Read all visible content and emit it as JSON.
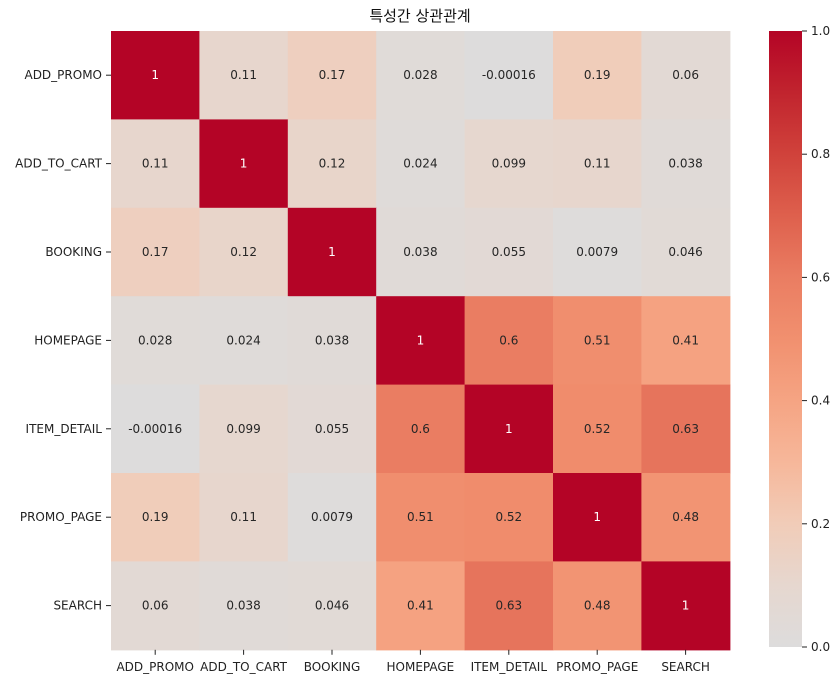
{
  "chart_data": {
    "type": "heatmap",
    "title": "특성간 상관관계",
    "row_labels": [
      "ADD_PROMO",
      "ADD_TO_CART",
      "BOOKING",
      "HOMEPAGE",
      "ITEM_DETAIL",
      "PROMO_PAGE",
      "SEARCH"
    ],
    "col_labels": [
      "ADD_PROMO",
      "ADD_TO_CART",
      "BOOKING",
      "HOMEPAGE",
      "ITEM_DETAIL",
      "PROMO_PAGE",
      "SEARCH"
    ],
    "values": [
      [
        1,
        0.11,
        0.17,
        0.028,
        -0.00016,
        0.19,
        0.06
      ],
      [
        0.11,
        1,
        0.12,
        0.024,
        0.099,
        0.11,
        0.038
      ],
      [
        0.17,
        0.12,
        1,
        0.038,
        0.055,
        0.0079,
        0.046
      ],
      [
        0.028,
        0.024,
        0.038,
        1,
        0.6,
        0.51,
        0.41
      ],
      [
        -0.00016,
        0.099,
        0.055,
        0.6,
        1,
        0.52,
        0.63
      ],
      [
        0.19,
        0.11,
        0.0079,
        0.51,
        0.52,
        1,
        0.48
      ],
      [
        0.06,
        0.038,
        0.046,
        0.41,
        0.63,
        0.48,
        1
      ]
    ],
    "annotations": [
      [
        "1",
        "0.11",
        "0.17",
        "0.028",
        "-0.00016",
        "0.19",
        "0.06"
      ],
      [
        "0.11",
        "1",
        "0.12",
        "0.024",
        "0.099",
        "0.11",
        "0.038"
      ],
      [
        "0.17",
        "0.12",
        "1",
        "0.038",
        "0.055",
        "0.0079",
        "0.046"
      ],
      [
        "0.028",
        "0.024",
        "0.038",
        "1",
        "0.6",
        "0.51",
        "0.41"
      ],
      [
        "-0.00016",
        "0.099",
        "0.055",
        "0.6",
        "1",
        "0.52",
        "0.63"
      ],
      [
        "0.19",
        "0.11",
        "0.0079",
        "0.51",
        "0.52",
        "1",
        "0.48"
      ],
      [
        "0.06",
        "0.038",
        "0.046",
        "0.41",
        "0.63",
        "0.48",
        "1"
      ]
    ],
    "colormap": "coolwarm (center 0)",
    "vmin": 0,
    "vmax": 1,
    "colorbar_ticks": [
      "0.0",
      "0.2",
      "0.4",
      "0.6",
      "0.8",
      "1.0"
    ],
    "colors": {
      "low": "#dddcdc",
      "high": "#b40426"
    }
  }
}
